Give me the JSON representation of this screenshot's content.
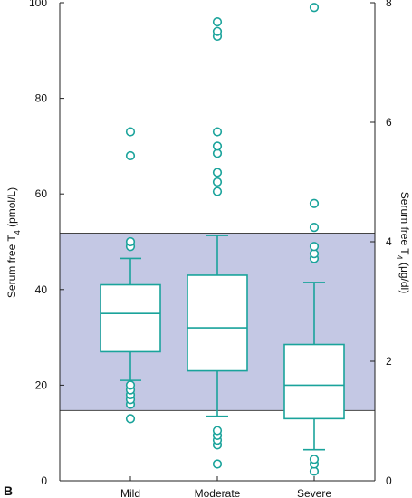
{
  "panel_label": "B",
  "colors": {
    "box": "#1aa39b",
    "band_fill": "#c4c8e4",
    "axis": "#222222",
    "band_line": "#444444"
  },
  "chart_data": {
    "type": "box",
    "categories": [
      "Mild",
      "Moderate",
      "Severe"
    ],
    "ylabel_left": {
      "main": "Serum free T",
      "sub": "4",
      "unit": " (pmol/L)"
    },
    "ylabel_right": {
      "main": "Serum free T",
      "sub": "4",
      "unit": " (μg/dl)"
    },
    "ylim_left": [
      0,
      100
    ],
    "yticks_left": [
      "0",
      "20",
      "40",
      "60",
      "80",
      "100"
    ],
    "ylim_right": [
      0,
      8
    ],
    "yticks_right": [
      "0",
      "2",
      "4",
      "6",
      "8"
    ],
    "grid": false,
    "reference_range": [
      14.7,
      51.8
    ],
    "boxes": [
      {
        "category": "Mild",
        "whisker_low": 21,
        "q1": 27,
        "median": 35,
        "q3": 41,
        "whisker_high": 46.5,
        "outliers": [
          13,
          16,
          17,
          18,
          19,
          20,
          49,
          50,
          68,
          73
        ]
      },
      {
        "category": "Moderate",
        "whisker_low": 13.5,
        "q1": 23,
        "median": 32,
        "q3": 43,
        "whisker_high": 51.3,
        "outliers": [
          3.5,
          7.5,
          8.5,
          9.5,
          10.5,
          60.5,
          62.5,
          64.5,
          68.5,
          70,
          73,
          93,
          94,
          96
        ]
      },
      {
        "category": "Severe",
        "whisker_low": 6.5,
        "q1": 13,
        "median": 20,
        "q3": 28.5,
        "whisker_high": 41.5,
        "outliers": [
          2,
          3.5,
          4.5,
          46.5,
          47.5,
          49,
          53,
          58,
          99
        ]
      }
    ]
  }
}
